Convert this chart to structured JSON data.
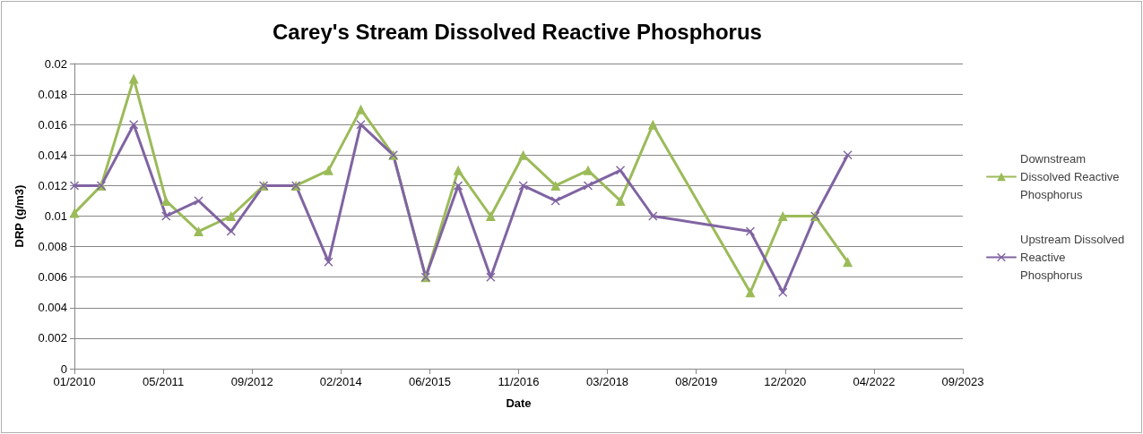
{
  "chart_data": {
    "type": "line",
    "title": "Carey's Stream Dissolved Reactive Phosphorus",
    "xlabel": "Date",
    "ylabel": "DRP (g/m3)",
    "xlim": [
      "2010-01-01",
      "2023-09-10"
    ],
    "xticks": [
      {
        "value": "2010-01-01",
        "label": "01/2010"
      },
      {
        "value": "2011-05-16",
        "label": "05/2011"
      },
      {
        "value": "2012-09-27",
        "label": "09/2012"
      },
      {
        "value": "2014-02-09",
        "label": "02/2014"
      },
      {
        "value": "2015-06-24",
        "label": "06/2015"
      },
      {
        "value": "2016-11-05",
        "label": "11/2016"
      },
      {
        "value": "2018-03-20",
        "label": "03/2018"
      },
      {
        "value": "2019-08-02",
        "label": "08/2019"
      },
      {
        "value": "2020-12-14",
        "label": "12/2020"
      },
      {
        "value": "2022-04-28",
        "label": "04/2022"
      },
      {
        "value": "2023-09-10",
        "label": "09/2023"
      }
    ],
    "ylim": [
      0,
      0.02
    ],
    "yticks": [
      0,
      0.002,
      0.004,
      0.006,
      0.008,
      0.01,
      0.012,
      0.014,
      0.016,
      0.018,
      0.02
    ],
    "grid": "y",
    "legend": "right",
    "series": [
      {
        "name": "Downstream Dissolved Reactive Phosphorus",
        "color": "#9bbb59",
        "marker": "triangle",
        "x": [
          "2010-01",
          "2010-06",
          "2010-12",
          "2011-06",
          "2011-12",
          "2012-06",
          "2012-12",
          "2013-06",
          "2013-12",
          "2014-06",
          "2014-12",
          "2015-06",
          "2015-12",
          "2016-06",
          "2016-12",
          "2017-06",
          "2017-12",
          "2018-06",
          "2018-12",
          "2020-06",
          "2020-12",
          "2021-06",
          "2021-12"
        ],
        "values": [
          0.0102,
          0.012,
          0.019,
          0.011,
          0.009,
          0.01,
          0.012,
          0.012,
          0.013,
          0.017,
          0.014,
          0.006,
          0.013,
          0.01,
          0.014,
          0.012,
          0.013,
          0.011,
          0.016,
          0.005,
          0.01,
          0.01,
          0.007
        ]
      },
      {
        "name": "Upstream Dissolved Reactive Phosphorus",
        "color": "#8064a2",
        "marker": "cross",
        "x": [
          "2010-01",
          "2010-06",
          "2010-12",
          "2011-06",
          "2011-12",
          "2012-06",
          "2012-12",
          "2013-06",
          "2013-12",
          "2014-06",
          "2014-12",
          "2015-06",
          "2015-12",
          "2016-06",
          "2016-12",
          "2017-06",
          "2017-12",
          "2018-06",
          "2018-12",
          "2020-06",
          "2020-12",
          "2021-06",
          "2021-12"
        ],
        "values": [
          0.012,
          0.012,
          0.016,
          0.01,
          0.011,
          0.009,
          0.012,
          0.012,
          0.007,
          0.016,
          0.014,
          0.006,
          0.012,
          0.006,
          0.012,
          0.011,
          0.012,
          0.013,
          0.01,
          0.009,
          0.005,
          0.01,
          0.014
        ]
      }
    ]
  }
}
